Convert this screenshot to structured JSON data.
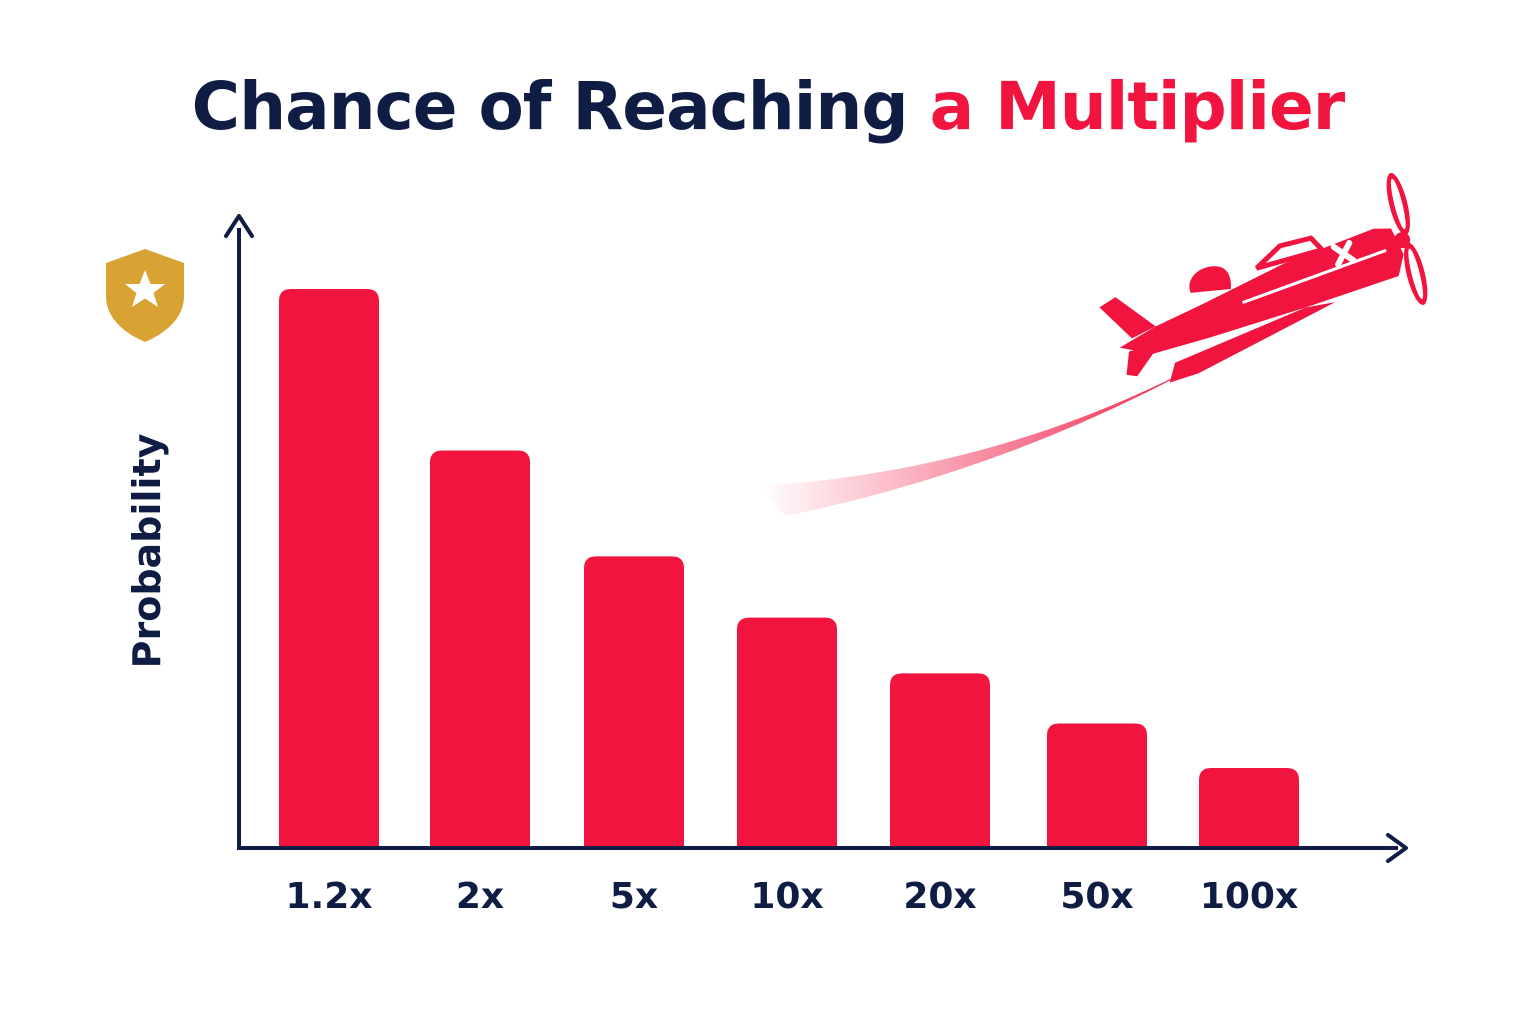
{
  "title": {
    "part1": "Chance of Reaching",
    "part2": "a Multiplier"
  },
  "colors": {
    "title_dark": "#0f1d44",
    "accent": "#f0143f",
    "axis": "#0f1d44",
    "badge": "#d8a332"
  },
  "icons": [
    "shield-star-icon",
    "airplane-icon"
  ],
  "chart_data": {
    "type": "bar",
    "ylabel": "Probability",
    "xlabel": "",
    "categories": [
      "1.2x",
      "2x",
      "5x",
      "10x",
      "20x",
      "50x",
      "100x"
    ],
    "values": [
      100,
      71,
      52,
      41,
      31,
      22,
      14
    ],
    "ylim": [
      0,
      110
    ],
    "y_ticks_shown": false,
    "grid": false,
    "legend": "none"
  }
}
